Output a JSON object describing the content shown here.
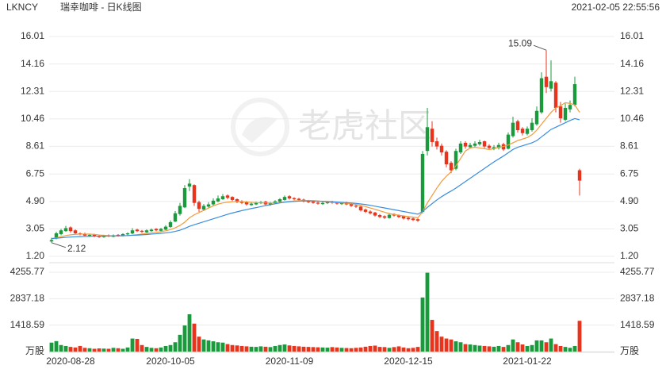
{
  "header": {
    "symbol": "LKNCY",
    "name": "瑞幸咖啡 - 日K线图",
    "timestamp": "2021-02-05 22:55:56"
  },
  "watermark": "老虎社区",
  "chart_data": {
    "type": "candlestick",
    "categories": [
      null,
      null,
      null,
      null,
      "2020-08-28",
      null,
      null,
      null,
      null,
      null,
      null,
      null,
      null,
      null,
      null,
      null,
      null,
      null,
      null,
      null,
      null,
      null,
      null,
      null,
      null,
      "2020-10-05",
      null,
      null,
      null,
      null,
      null,
      null,
      null,
      null,
      null,
      null,
      null,
      null,
      null,
      null,
      null,
      null,
      null,
      null,
      null,
      null,
      null,
      null,
      null,
      null,
      "2020-11-09",
      null,
      null,
      null,
      null,
      null,
      null,
      null,
      null,
      null,
      null,
      null,
      null,
      null,
      null,
      null,
      null,
      null,
      null,
      null,
      null,
      null,
      null,
      null,
      null,
      "2020-12-15",
      null,
      null,
      null,
      null,
      null,
      null,
      null,
      null,
      null,
      null,
      null,
      null,
      null,
      null,
      null,
      null,
      null,
      null,
      null,
      null,
      null,
      null,
      null,
      null,
      "2021-01-22",
      null,
      null,
      null,
      null,
      null,
      null,
      null,
      null,
      null,
      null,
      null
    ],
    "open": [
      2.2,
      2.4,
      2.7,
      2.9,
      3.15,
      2.95,
      2.75,
      2.72,
      2.58,
      2.66,
      2.58,
      2.5,
      2.62,
      2.52,
      2.65,
      2.58,
      2.68,
      2.74,
      3.0,
      2.92,
      2.82,
      2.9,
      3.05,
      2.92,
      3.0,
      3.18,
      3.55,
      4.05,
      4.5,
      5.9,
      6.0,
      4.85,
      4.35,
      4.55,
      4.7,
      4.9,
      5.05,
      5.3,
      5.2,
      5.05,
      4.9,
      4.85,
      4.65,
      4.7,
      4.78,
      4.88,
      4.68,
      4.78,
      4.88,
      5.0,
      5.25,
      5.12,
      5.08,
      5.02,
      4.95,
      4.88,
      4.82,
      4.72,
      4.78,
      4.88,
      4.82,
      4.72,
      4.82,
      4.72,
      4.62,
      4.55,
      4.35,
      4.22,
      4.15,
      3.98,
      3.9,
      3.78,
      4.05,
      3.98,
      3.9,
      3.8,
      3.75,
      3.7,
      4.2,
      8.3,
      9.8,
      8.95,
      8.65,
      8.25,
      7.5,
      7.1,
      8.2,
      8.85,
      8.55,
      8.65,
      8.75,
      8.95,
      8.65,
      8.45,
      8.5,
      8.75,
      8.45,
      9.3,
      10.3,
      9.8,
      9.45,
      9.7,
      10.1,
      10.9,
      13.3,
      12.5,
      12.9,
      11.3,
      10.4,
      11.1,
      11.4,
      7.0
    ],
    "high": [
      2.45,
      2.85,
      3.05,
      3.25,
      3.22,
      3.02,
      2.82,
      2.8,
      2.72,
      2.72,
      2.64,
      2.66,
      2.68,
      2.68,
      2.7,
      2.76,
      2.82,
      3.1,
      3.06,
      2.98,
      3.02,
      3.08,
      3.1,
      3.12,
      3.3,
      3.62,
      4.25,
      4.8,
      6.0,
      6.4,
      6.05,
      4.95,
      4.72,
      4.85,
      5.1,
      5.3,
      5.4,
      5.38,
      5.25,
      5.1,
      4.98,
      4.92,
      4.82,
      4.88,
      4.92,
      4.94,
      4.86,
      4.98,
      5.12,
      5.3,
      5.32,
      5.18,
      5.14,
      5.08,
      5.0,
      4.94,
      4.88,
      4.86,
      4.92,
      4.94,
      4.88,
      4.86,
      4.88,
      4.78,
      4.68,
      4.6,
      4.42,
      4.3,
      4.2,
      4.05,
      3.96,
      4.08,
      4.1,
      4.02,
      3.96,
      3.86,
      3.82,
      3.76,
      8.3,
      11.2,
      10.3,
      9.2,
      8.8,
      8.35,
      7.6,
      8.45,
      8.95,
      8.95,
      8.85,
      8.95,
      9.05,
      9.0,
      8.75,
      8.7,
      8.85,
      8.85,
      9.55,
      10.6,
      10.4,
      9.9,
      9.95,
      10.5,
      11.3,
      13.6,
      15.09,
      14.4,
      13.0,
      11.6,
      11.5,
      11.7,
      13.3,
      7.1
    ],
    "low": [
      2.12,
      2.35,
      2.62,
      2.85,
      2.8,
      2.68,
      2.62,
      2.52,
      2.5,
      2.48,
      2.44,
      2.45,
      2.5,
      2.48,
      2.52,
      2.54,
      2.62,
      2.7,
      2.84,
      2.78,
      2.78,
      2.86,
      2.9,
      2.88,
      2.96,
      3.12,
      3.5,
      3.95,
      4.45,
      5.6,
      4.6,
      4.2,
      4.25,
      4.45,
      4.62,
      4.85,
      5.0,
      5.05,
      4.92,
      4.78,
      4.72,
      4.62,
      4.6,
      4.65,
      4.72,
      4.65,
      4.62,
      4.72,
      4.82,
      4.95,
      5.02,
      4.98,
      4.94,
      4.84,
      4.78,
      4.74,
      4.68,
      4.66,
      4.72,
      4.74,
      4.68,
      4.66,
      4.64,
      4.52,
      4.46,
      4.22,
      4.12,
      4.02,
      3.88,
      3.78,
      3.72,
      3.74,
      3.88,
      3.78,
      3.68,
      3.62,
      3.58,
      3.52,
      4.1,
      8.0,
      8.6,
      8.4,
      8.0,
      7.2,
      6.8,
      7.0,
      8.1,
      8.45,
      8.45,
      8.55,
      8.65,
      8.5,
      8.4,
      8.35,
      8.4,
      8.3,
      8.4,
      9.2,
      9.55,
      9.35,
      9.35,
      9.6,
      10.0,
      10.8,
      12.2,
      12.3,
      10.9,
      10.2,
      10.3,
      10.9,
      11.3,
      5.3
    ],
    "close": [
      2.3,
      2.75,
      2.95,
      3.1,
      2.9,
      2.75,
      2.7,
      2.6,
      2.65,
      2.55,
      2.5,
      2.6,
      2.55,
      2.62,
      2.58,
      2.7,
      2.75,
      2.95,
      2.9,
      2.85,
      2.95,
      3.0,
      2.95,
      3.05,
      3.2,
      3.5,
      4.1,
      4.6,
      5.8,
      6.1,
      4.8,
      4.4,
      4.6,
      4.7,
      4.95,
      5.1,
      5.25,
      5.15,
      5.0,
      4.85,
      4.8,
      4.7,
      4.75,
      4.8,
      4.85,
      4.7,
      4.8,
      4.9,
      5.05,
      5.2,
      5.1,
      5.05,
      5.0,
      4.9,
      4.85,
      4.8,
      4.75,
      4.8,
      4.85,
      4.8,
      4.75,
      4.8,
      4.7,
      4.6,
      4.55,
      4.3,
      4.2,
      4.1,
      3.95,
      3.85,
      3.8,
      4.0,
      3.95,
      3.85,
      3.75,
      3.7,
      3.65,
      3.6,
      8.1,
      9.9,
      8.9,
      8.6,
      8.2,
      7.4,
      7.0,
      8.3,
      8.8,
      8.6,
      8.7,
      8.8,
      8.9,
      8.6,
      8.5,
      8.55,
      8.7,
      8.4,
      9.4,
      10.2,
      9.7,
      9.5,
      9.8,
      10.2,
      11.0,
      13.2,
      12.6,
      13.0,
      11.2,
      10.5,
      11.2,
      11.4,
      12.8,
      6.3
    ],
    "up_color": "#1a9a3c",
    "down_color": "#e8341c",
    "ylim": [
      1.2,
      16.01
    ],
    "yticks": [
      16.01,
      14.16,
      12.31,
      10.46,
      8.61,
      6.75,
      {
        "value": 4.9,
        "label": "4.90"
      },
      3.05,
      {
        "value": 1.2,
        "label": "1.20"
      }
    ],
    "grid": true,
    "lines": [
      {
        "color": "#f39a3c",
        "values": [
          2.4,
          2.45,
          2.52,
          2.6,
          2.65,
          2.68,
          2.7,
          2.7,
          2.7,
          2.68,
          2.64,
          2.61,
          2.59,
          2.58,
          2.58,
          2.59,
          2.6,
          2.63,
          2.66,
          2.7,
          2.74,
          2.78,
          2.82,
          2.86,
          2.92,
          3.0,
          3.12,
          3.28,
          3.5,
          3.8,
          4.0,
          4.15,
          4.3,
          4.45,
          4.6,
          4.72,
          4.8,
          4.85,
          4.88,
          4.9,
          4.88,
          4.86,
          4.84,
          4.82,
          4.8,
          4.8,
          4.79,
          4.8,
          4.82,
          4.86,
          4.9,
          4.93,
          4.95,
          4.96,
          4.96,
          4.95,
          4.93,
          4.9,
          4.87,
          4.84,
          4.82,
          4.8,
          4.78,
          4.75,
          4.7,
          4.63,
          4.55,
          4.46,
          4.37,
          4.27,
          4.17,
          4.08,
          4.02,
          3.97,
          3.92,
          3.88,
          3.84,
          3.8,
          4.2,
          4.8,
          5.3,
          5.8,
          6.25,
          6.6,
          6.9,
          7.3,
          7.8,
          8.3,
          8.5,
          8.55,
          8.5,
          8.45,
          8.4,
          8.45,
          8.55,
          8.6,
          8.7,
          8.85,
          9.0,
          9.1,
          9.2,
          9.4,
          9.7,
          10.1,
          10.5,
          10.9,
          11.2,
          11.35,
          11.55,
          11.5,
          11.4,
          10.9
        ]
      },
      {
        "color": "#3a8de0",
        "values": [
          2.4,
          2.42,
          2.45,
          2.48,
          2.5,
          2.52,
          2.53,
          2.54,
          2.55,
          2.56,
          2.56,
          2.57,
          2.57,
          2.58,
          2.58,
          2.59,
          2.6,
          2.62,
          2.63,
          2.65,
          2.67,
          2.7,
          2.72,
          2.75,
          2.78,
          2.82,
          2.88,
          2.96,
          3.08,
          3.22,
          3.33,
          3.43,
          3.53,
          3.63,
          3.73,
          3.83,
          3.93,
          4.03,
          4.12,
          4.2,
          4.28,
          4.35,
          4.42,
          4.48,
          4.55,
          4.62,
          4.68,
          4.74,
          4.8,
          4.85,
          4.88,
          4.9,
          4.92,
          4.93,
          4.93,
          4.93,
          4.92,
          4.91,
          4.9,
          4.88,
          4.86,
          4.84,
          4.82,
          4.8,
          4.77,
          4.73,
          4.69,
          4.64,
          4.58,
          4.52,
          4.46,
          4.4,
          4.34,
          4.28,
          4.22,
          4.16,
          4.1,
          4.04,
          4.22,
          4.5,
          4.75,
          5.0,
          5.22,
          5.42,
          5.6,
          5.8,
          6.02,
          6.24,
          6.46,
          6.68,
          6.9,
          7.12,
          7.34,
          7.56,
          7.76,
          7.96,
          8.18,
          8.4,
          8.55,
          8.65,
          8.75,
          8.85,
          9.0,
          9.25,
          9.5,
          9.75,
          9.9,
          10.05,
          10.2,
          10.35,
          10.48,
          10.4
        ]
      }
    ],
    "volume": {
      "values": [
        480,
        560,
        350,
        300,
        250,
        220,
        300,
        200,
        180,
        150,
        170,
        160,
        150,
        200,
        180,
        150,
        220,
        700,
        680,
        350,
        250,
        200,
        180,
        220,
        300,
        350,
        500,
        900,
        1400,
        2000,
        1500,
        800,
        650,
        600,
        550,
        500,
        480,
        400,
        350,
        330,
        300,
        280,
        260,
        250,
        280,
        260,
        240,
        300,
        350,
        380,
        330,
        300,
        280,
        260,
        250,
        240,
        230,
        220,
        210,
        240,
        220,
        200,
        190,
        180,
        200,
        220,
        260,
        300,
        320,
        250,
        240,
        200,
        240,
        280,
        220,
        180,
        200,
        250,
        2900,
        4230,
        1700,
        1100,
        800,
        700,
        650,
        550,
        500,
        400,
        380,
        350,
        320,
        300,
        280,
        260,
        300,
        250,
        350,
        650,
        500,
        380,
        300,
        350,
        600,
        600,
        500,
        700,
        400,
        300,
        250,
        200,
        300,
        1650
      ],
      "ylim": [
        0,
        4255.77
      ],
      "yticks": [
        4255.77,
        2837.18,
        1418.59,
        {
          "value": 0,
          "label": "万股"
        }
      ]
    }
  }
}
